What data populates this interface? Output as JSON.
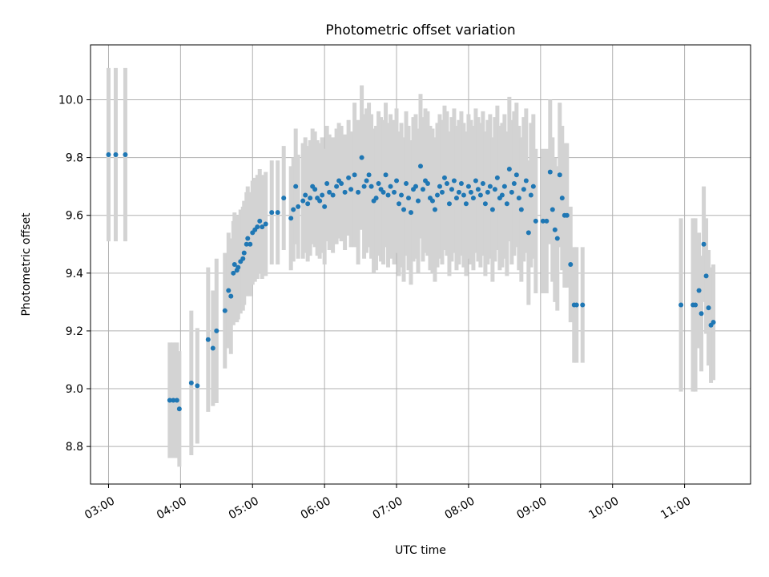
{
  "chart_data": {
    "type": "scatter",
    "title": "Photometric offset variation",
    "xlabel": "UTC time",
    "ylabel": "Photometric offset",
    "xlim": [
      "02:45",
      "11:55"
    ],
    "ylim": [
      8.67,
      10.19
    ],
    "x_ticks": [
      "03:00",
      "04:00",
      "05:00",
      "06:00",
      "07:00",
      "08:00",
      "09:00",
      "10:00",
      "11:00"
    ],
    "y_ticks": [
      "8.8",
      "9.0",
      "9.2",
      "9.4",
      "9.6",
      "9.8",
      "10.0"
    ],
    "grid": true,
    "series": [
      {
        "marker_color": "#1f77b4",
        "errorbar_color": "#d3d3d3",
        "points": [
          [
            "03:00",
            9.81,
            0.3
          ],
          [
            "03:06",
            9.81,
            0.3
          ],
          [
            "03:14",
            9.81,
            0.3
          ],
          [
            "03:51",
            8.96,
            0.2
          ],
          [
            "03:54",
            8.96,
            0.2
          ],
          [
            "03:57",
            8.96,
            0.2
          ],
          [
            "03:59",
            8.93,
            0.2
          ],
          [
            "04:09",
            9.02,
            0.25
          ],
          [
            "04:14",
            9.01,
            0.2
          ],
          [
            "04:23",
            9.17,
            0.25
          ],
          [
            "04:27",
            9.14,
            0.2
          ],
          [
            "04:30",
            9.2,
            0.25
          ],
          [
            "04:37",
            9.27,
            0.2
          ],
          [
            "04:40",
            9.34,
            0.2
          ],
          [
            "04:42",
            9.32,
            0.2
          ],
          [
            "04:44",
            9.4,
            0.18
          ],
          [
            "04:45",
            9.43,
            0.18
          ],
          [
            "04:47",
            9.41,
            0.18
          ],
          [
            "04:48",
            9.42,
            0.18
          ],
          [
            "04:50",
            9.44,
            0.18
          ],
          [
            "04:52",
            9.45,
            0.18
          ],
          [
            "04:53",
            9.47,
            0.18
          ],
          [
            "04:55",
            9.5,
            0.18
          ],
          [
            "04:56",
            9.52,
            0.18
          ],
          [
            "04:58",
            9.5,
            0.18
          ],
          [
            "05:00",
            9.54,
            0.18
          ],
          [
            "05:02",
            9.55,
            0.18
          ],
          [
            "05:04",
            9.56,
            0.18
          ],
          [
            "05:06",
            9.58,
            0.18
          ],
          [
            "05:08",
            9.56,
            0.18
          ],
          [
            "05:11",
            9.57,
            0.18
          ],
          [
            "05:16",
            9.61,
            0.18
          ],
          [
            "05:21",
            9.61,
            0.18
          ],
          [
            "05:26",
            9.66,
            0.18
          ],
          [
            "05:32",
            9.59,
            0.18
          ],
          [
            "05:34",
            9.62,
            0.18
          ],
          [
            "05:36",
            9.7,
            0.2
          ],
          [
            "05:38",
            9.63,
            0.18
          ],
          [
            "05:42",
            9.65,
            0.2
          ],
          [
            "05:44",
            9.67,
            0.2
          ],
          [
            "05:46",
            9.64,
            0.2
          ],
          [
            "05:48",
            9.66,
            0.2
          ],
          [
            "05:50",
            9.7,
            0.2
          ],
          [
            "05:52",
            9.69,
            0.2
          ],
          [
            "05:54",
            9.66,
            0.2
          ],
          [
            "05:56",
            9.65,
            0.2
          ],
          [
            "05:58",
            9.67,
            0.2
          ],
          [
            "06:00",
            9.63,
            0.2
          ],
          [
            "06:02",
            9.71,
            0.2
          ],
          [
            "06:04",
            9.68,
            0.2
          ],
          [
            "06:07",
            9.67,
            0.2
          ],
          [
            "06:10",
            9.7,
            0.2
          ],
          [
            "06:12",
            9.72,
            0.2
          ],
          [
            "06:14",
            9.71,
            0.2
          ],
          [
            "06:17",
            9.68,
            0.2
          ],
          [
            "06:20",
            9.73,
            0.2
          ],
          [
            "06:22",
            9.69,
            0.2
          ],
          [
            "06:25",
            9.74,
            0.25
          ],
          [
            "06:28",
            9.68,
            0.25
          ],
          [
            "06:31",
            9.8,
            0.25
          ],
          [
            "06:33",
            9.7,
            0.25
          ],
          [
            "06:35",
            9.72,
            0.25
          ],
          [
            "06:37",
            9.74,
            0.25
          ],
          [
            "06:39",
            9.7,
            0.25
          ],
          [
            "06:41",
            9.65,
            0.25
          ],
          [
            "06:43",
            9.66,
            0.25
          ],
          [
            "06:45",
            9.71,
            0.25
          ],
          [
            "06:47",
            9.69,
            0.25
          ],
          [
            "06:49",
            9.68,
            0.25
          ],
          [
            "06:51",
            9.74,
            0.25
          ],
          [
            "06:53",
            9.67,
            0.25
          ],
          [
            "06:55",
            9.7,
            0.25
          ],
          [
            "06:58",
            9.68,
            0.25
          ],
          [
            "07:00",
            9.72,
            0.25
          ],
          [
            "07:02",
            9.64,
            0.25
          ],
          [
            "07:04",
            9.67,
            0.25
          ],
          [
            "07:06",
            9.62,
            0.25
          ],
          [
            "07:08",
            9.71,
            0.25
          ],
          [
            "07:10",
            9.66,
            0.25
          ],
          [
            "07:12",
            9.61,
            0.25
          ],
          [
            "07:14",
            9.69,
            0.25
          ],
          [
            "07:16",
            9.7,
            0.25
          ],
          [
            "07:18",
            9.65,
            0.25
          ],
          [
            "07:20",
            9.77,
            0.25
          ],
          [
            "07:22",
            9.69,
            0.25
          ],
          [
            "07:24",
            9.72,
            0.25
          ],
          [
            "07:26",
            9.71,
            0.25
          ],
          [
            "07:28",
            9.66,
            0.25
          ],
          [
            "07:30",
            9.65,
            0.25
          ],
          [
            "07:32",
            9.62,
            0.25
          ],
          [
            "07:34",
            9.67,
            0.25
          ],
          [
            "07:36",
            9.7,
            0.25
          ],
          [
            "07:38",
            9.68,
            0.25
          ],
          [
            "07:40",
            9.73,
            0.25
          ],
          [
            "07:42",
            9.71,
            0.25
          ],
          [
            "07:44",
            9.64,
            0.25
          ],
          [
            "07:46",
            9.69,
            0.25
          ],
          [
            "07:48",
            9.72,
            0.25
          ],
          [
            "07:50",
            9.66,
            0.25
          ],
          [
            "07:52",
            9.68,
            0.25
          ],
          [
            "07:54",
            9.71,
            0.25
          ],
          [
            "07:56",
            9.67,
            0.25
          ],
          [
            "07:58",
            9.64,
            0.25
          ],
          [
            "08:00",
            9.7,
            0.25
          ],
          [
            "08:02",
            9.68,
            0.25
          ],
          [
            "08:04",
            9.66,
            0.25
          ],
          [
            "08:06",
            9.72,
            0.25
          ],
          [
            "08:08",
            9.69,
            0.25
          ],
          [
            "08:10",
            9.67,
            0.25
          ],
          [
            "08:12",
            9.71,
            0.25
          ],
          [
            "08:14",
            9.64,
            0.25
          ],
          [
            "08:16",
            9.68,
            0.25
          ],
          [
            "08:18",
            9.7,
            0.25
          ],
          [
            "08:20",
            9.62,
            0.25
          ],
          [
            "08:22",
            9.69,
            0.25
          ],
          [
            "08:24",
            9.73,
            0.25
          ],
          [
            "08:26",
            9.66,
            0.25
          ],
          [
            "08:28",
            9.67,
            0.25
          ],
          [
            "08:30",
            9.7,
            0.25
          ],
          [
            "08:32",
            9.64,
            0.25
          ],
          [
            "08:34",
            9.76,
            0.25
          ],
          [
            "08:36",
            9.68,
            0.25
          ],
          [
            "08:38",
            9.71,
            0.25
          ],
          [
            "08:40",
            9.74,
            0.25
          ],
          [
            "08:42",
            9.66,
            0.25
          ],
          [
            "08:44",
            9.62,
            0.25
          ],
          [
            "08:46",
            9.69,
            0.25
          ],
          [
            "08:48",
            9.72,
            0.25
          ],
          [
            "08:50",
            9.54,
            0.25
          ],
          [
            "08:52",
            9.67,
            0.25
          ],
          [
            "08:54",
            9.7,
            0.25
          ],
          [
            "08:56",
            9.58,
            0.25
          ],
          [
            "09:02",
            9.58,
            0.25
          ],
          [
            "09:05",
            9.58,
            0.25
          ],
          [
            "09:08",
            9.75,
            0.25
          ],
          [
            "09:10",
            9.62,
            0.25
          ],
          [
            "09:12",
            9.55,
            0.25
          ],
          [
            "09:14",
            9.52,
            0.25
          ],
          [
            "09:16",
            9.74,
            0.25
          ],
          [
            "09:18",
            9.66,
            0.25
          ],
          [
            "09:20",
            9.6,
            0.25
          ],
          [
            "09:22",
            9.6,
            0.25
          ],
          [
            "09:25",
            9.43,
            0.2
          ],
          [
            "09:28",
            9.29,
            0.2
          ],
          [
            "09:30",
            9.29,
            0.2
          ],
          [
            "09:35",
            9.29,
            0.2
          ],
          [
            "10:57",
            9.29,
            0.3
          ],
          [
            "11:07",
            9.29,
            0.3
          ],
          [
            "11:09",
            9.29,
            0.3
          ],
          [
            "11:12",
            9.34,
            0.2
          ],
          [
            "11:14",
            9.26,
            0.2
          ],
          [
            "11:16",
            9.5,
            0.2
          ],
          [
            "11:18",
            9.39,
            0.2
          ],
          [
            "11:20",
            9.28,
            0.2
          ],
          [
            "11:22",
            9.22,
            0.2
          ],
          [
            "11:24",
            9.23,
            0.2
          ]
        ]
      }
    ]
  }
}
